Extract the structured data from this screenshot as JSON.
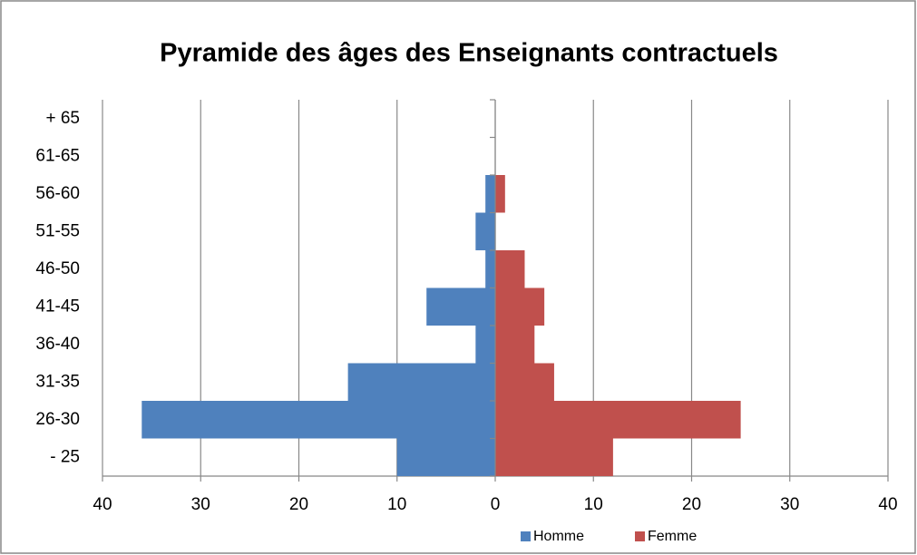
{
  "chart_data": {
    "type": "pyramid",
    "title": "Pyramide des âges des Enseignants contractuels",
    "categories": [
      "- 25",
      "26-30",
      "31-35",
      "36-40",
      "41-45",
      "46-50",
      "51-55",
      "56-60",
      "61-65",
      "+ 65"
    ],
    "series": [
      {
        "name": "Homme",
        "color": "#4f81bd",
        "values": [
          -10,
          -36,
          -15,
          -2,
          -7,
          -1,
          -2,
          -1,
          0,
          0
        ]
      },
      {
        "name": "Femme",
        "color": "#c0504d",
        "values": [
          12,
          25,
          6,
          4,
          5,
          3,
          0,
          1,
          0,
          0
        ]
      }
    ],
    "xlim": [
      -40,
      40
    ],
    "xticks": [
      {
        "value": -40,
        "label": "40"
      },
      {
        "value": -30,
        "label": "30"
      },
      {
        "value": -20,
        "label": "20"
      },
      {
        "value": -10,
        "label": "10"
      },
      0,
      10,
      20,
      30,
      40
    ],
    "grid": true,
    "legend": "bottom"
  }
}
